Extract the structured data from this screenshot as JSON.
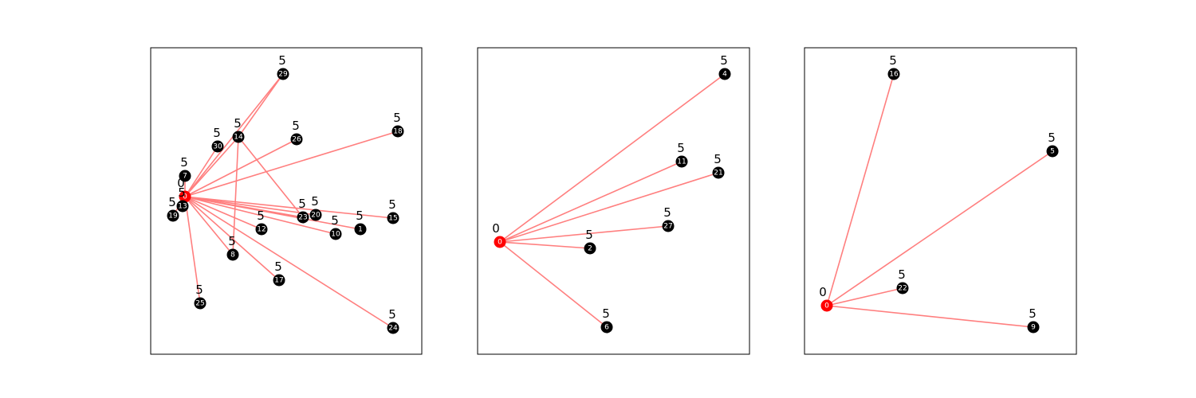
{
  "colors": {
    "edge": "#ff7f7f",
    "root": "#ff0000",
    "node": "#000000",
    "node_text": "#ffffff",
    "frame": "#000000"
  },
  "panels": [
    {
      "root": "0",
      "nodes": [
        {
          "id": "0",
          "label": "0",
          "score": "0",
          "root": true
        },
        {
          "id": "29",
          "label": "29",
          "score": "5"
        },
        {
          "id": "14",
          "label": "14",
          "score": "5"
        },
        {
          "id": "30",
          "label": "30",
          "score": "5"
        },
        {
          "id": "26",
          "label": "26",
          "score": "5"
        },
        {
          "id": "18",
          "label": "18",
          "score": "5"
        },
        {
          "id": "7",
          "label": "7",
          "score": "5"
        },
        {
          "id": "13",
          "label": "13",
          "score": "5"
        },
        {
          "id": "19",
          "label": "19",
          "score": "5"
        },
        {
          "id": "23",
          "label": "23",
          "score": "5"
        },
        {
          "id": "20",
          "label": "20",
          "score": "5"
        },
        {
          "id": "12",
          "label": "12",
          "score": "5"
        },
        {
          "id": "10",
          "label": "10",
          "score": "5"
        },
        {
          "id": "1",
          "label": "1",
          "score": "5"
        },
        {
          "id": "15",
          "label": "15",
          "score": "5"
        },
        {
          "id": "8",
          "label": "8",
          "score": "5"
        },
        {
          "id": "17",
          "label": "17",
          "score": "5"
        },
        {
          "id": "25",
          "label": "25",
          "score": "5"
        },
        {
          "id": "24",
          "label": "24",
          "score": "5"
        }
      ],
      "edges": [
        [
          "0",
          "29"
        ],
        [
          "14",
          "29"
        ],
        [
          "0",
          "14"
        ],
        [
          "0",
          "30"
        ],
        [
          "0",
          "26"
        ],
        [
          "0",
          "18"
        ],
        [
          "0",
          "7"
        ],
        [
          "0",
          "13"
        ],
        [
          "0",
          "19"
        ],
        [
          "0",
          "23"
        ],
        [
          "14",
          "23"
        ],
        [
          "0",
          "20"
        ],
        [
          "0",
          "12"
        ],
        [
          "0",
          "10"
        ],
        [
          "0",
          "1"
        ],
        [
          "0",
          "15"
        ],
        [
          "14",
          "8"
        ],
        [
          "0",
          "8"
        ],
        [
          "0",
          "17"
        ],
        [
          "0",
          "25"
        ],
        [
          "0",
          "24"
        ]
      ]
    },
    {
      "root": "0",
      "nodes": [
        {
          "id": "0",
          "label": "0",
          "score": "0",
          "root": true
        },
        {
          "id": "4",
          "label": "4",
          "score": "5"
        },
        {
          "id": "11",
          "label": "11",
          "score": "5"
        },
        {
          "id": "21",
          "label": "21",
          "score": "5"
        },
        {
          "id": "27",
          "label": "27",
          "score": "5"
        },
        {
          "id": "2",
          "label": "2",
          "score": "5"
        },
        {
          "id": "6",
          "label": "6",
          "score": "5"
        }
      ],
      "edges": [
        [
          "0",
          "4"
        ],
        [
          "0",
          "11"
        ],
        [
          "0",
          "21"
        ],
        [
          "0",
          "27"
        ],
        [
          "0",
          "2"
        ],
        [
          "0",
          "6"
        ]
      ]
    },
    {
      "root": "0",
      "nodes": [
        {
          "id": "0",
          "label": "0",
          "score": "0",
          "root": true
        },
        {
          "id": "16",
          "label": "16",
          "score": "5"
        },
        {
          "id": "5",
          "label": "5",
          "score": "5"
        },
        {
          "id": "22",
          "label": "22",
          "score": "5"
        },
        {
          "id": "9",
          "label": "9",
          "score": "5"
        }
      ],
      "edges": [
        [
          "0",
          "16"
        ],
        [
          "0",
          "5"
        ],
        [
          "0",
          "22"
        ],
        [
          "0",
          "9"
        ]
      ]
    }
  ]
}
